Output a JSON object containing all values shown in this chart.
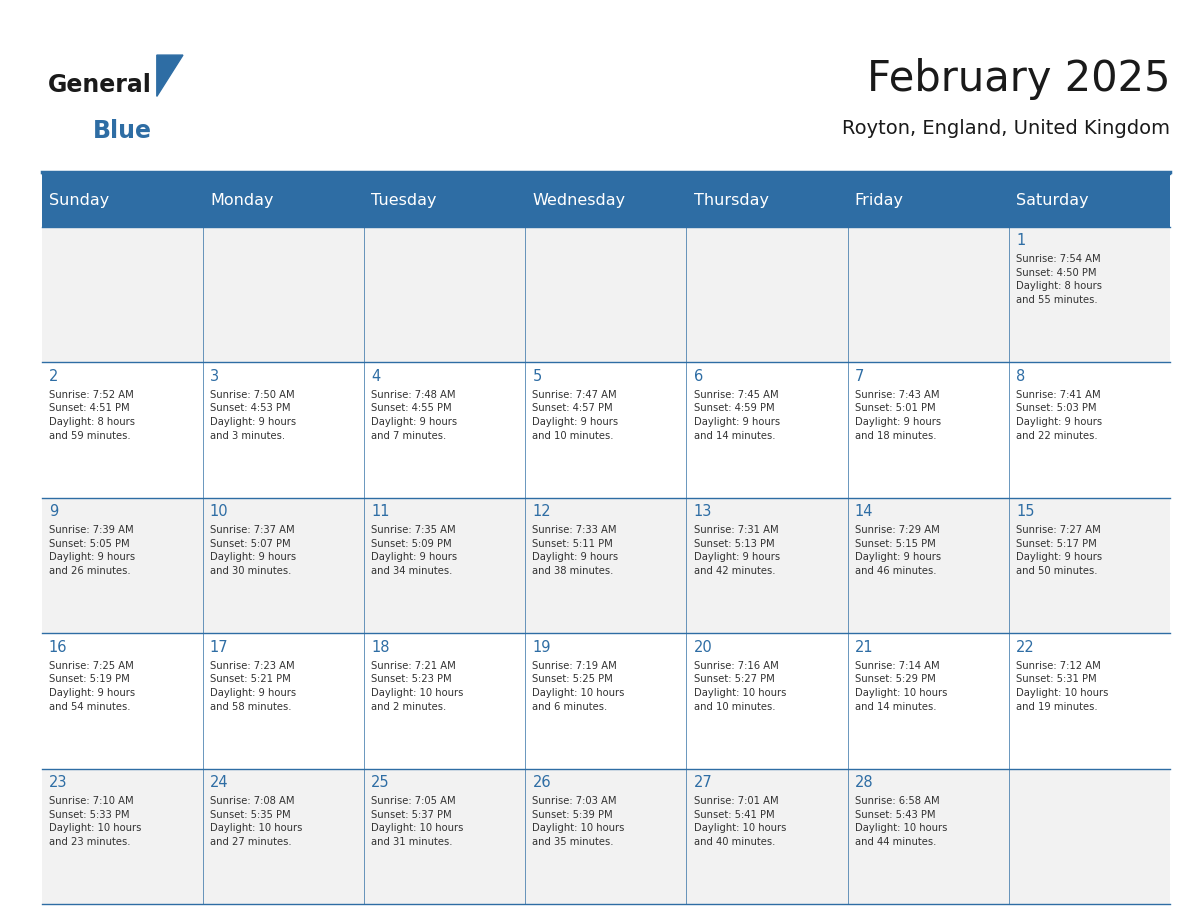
{
  "title": "February 2025",
  "subtitle": "Royton, England, United Kingdom",
  "header_bg": "#2E6DA4",
  "header_text_color": "#FFFFFF",
  "cell_bg_even": "#F2F2F2",
  "cell_bg_odd": "#FFFFFF",
  "day_number_color": "#2E6DA4",
  "info_text_color": "#333333",
  "border_color": "#2E6DA4",
  "days_of_week": [
    "Sunday",
    "Monday",
    "Tuesday",
    "Wednesday",
    "Thursday",
    "Friday",
    "Saturday"
  ],
  "weeks": [
    [
      {
        "day": null,
        "info": ""
      },
      {
        "day": null,
        "info": ""
      },
      {
        "day": null,
        "info": ""
      },
      {
        "day": null,
        "info": ""
      },
      {
        "day": null,
        "info": ""
      },
      {
        "day": null,
        "info": ""
      },
      {
        "day": 1,
        "info": "Sunrise: 7:54 AM\nSunset: 4:50 PM\nDaylight: 8 hours\nand 55 minutes."
      }
    ],
    [
      {
        "day": 2,
        "info": "Sunrise: 7:52 AM\nSunset: 4:51 PM\nDaylight: 8 hours\nand 59 minutes."
      },
      {
        "day": 3,
        "info": "Sunrise: 7:50 AM\nSunset: 4:53 PM\nDaylight: 9 hours\nand 3 minutes."
      },
      {
        "day": 4,
        "info": "Sunrise: 7:48 AM\nSunset: 4:55 PM\nDaylight: 9 hours\nand 7 minutes."
      },
      {
        "day": 5,
        "info": "Sunrise: 7:47 AM\nSunset: 4:57 PM\nDaylight: 9 hours\nand 10 minutes."
      },
      {
        "day": 6,
        "info": "Sunrise: 7:45 AM\nSunset: 4:59 PM\nDaylight: 9 hours\nand 14 minutes."
      },
      {
        "day": 7,
        "info": "Sunrise: 7:43 AM\nSunset: 5:01 PM\nDaylight: 9 hours\nand 18 minutes."
      },
      {
        "day": 8,
        "info": "Sunrise: 7:41 AM\nSunset: 5:03 PM\nDaylight: 9 hours\nand 22 minutes."
      }
    ],
    [
      {
        "day": 9,
        "info": "Sunrise: 7:39 AM\nSunset: 5:05 PM\nDaylight: 9 hours\nand 26 minutes."
      },
      {
        "day": 10,
        "info": "Sunrise: 7:37 AM\nSunset: 5:07 PM\nDaylight: 9 hours\nand 30 minutes."
      },
      {
        "day": 11,
        "info": "Sunrise: 7:35 AM\nSunset: 5:09 PM\nDaylight: 9 hours\nand 34 minutes."
      },
      {
        "day": 12,
        "info": "Sunrise: 7:33 AM\nSunset: 5:11 PM\nDaylight: 9 hours\nand 38 minutes."
      },
      {
        "day": 13,
        "info": "Sunrise: 7:31 AM\nSunset: 5:13 PM\nDaylight: 9 hours\nand 42 minutes."
      },
      {
        "day": 14,
        "info": "Sunrise: 7:29 AM\nSunset: 5:15 PM\nDaylight: 9 hours\nand 46 minutes."
      },
      {
        "day": 15,
        "info": "Sunrise: 7:27 AM\nSunset: 5:17 PM\nDaylight: 9 hours\nand 50 minutes."
      }
    ],
    [
      {
        "day": 16,
        "info": "Sunrise: 7:25 AM\nSunset: 5:19 PM\nDaylight: 9 hours\nand 54 minutes."
      },
      {
        "day": 17,
        "info": "Sunrise: 7:23 AM\nSunset: 5:21 PM\nDaylight: 9 hours\nand 58 minutes."
      },
      {
        "day": 18,
        "info": "Sunrise: 7:21 AM\nSunset: 5:23 PM\nDaylight: 10 hours\nand 2 minutes."
      },
      {
        "day": 19,
        "info": "Sunrise: 7:19 AM\nSunset: 5:25 PM\nDaylight: 10 hours\nand 6 minutes."
      },
      {
        "day": 20,
        "info": "Sunrise: 7:16 AM\nSunset: 5:27 PM\nDaylight: 10 hours\nand 10 minutes."
      },
      {
        "day": 21,
        "info": "Sunrise: 7:14 AM\nSunset: 5:29 PM\nDaylight: 10 hours\nand 14 minutes."
      },
      {
        "day": 22,
        "info": "Sunrise: 7:12 AM\nSunset: 5:31 PM\nDaylight: 10 hours\nand 19 minutes."
      }
    ],
    [
      {
        "day": 23,
        "info": "Sunrise: 7:10 AM\nSunset: 5:33 PM\nDaylight: 10 hours\nand 23 minutes."
      },
      {
        "day": 24,
        "info": "Sunrise: 7:08 AM\nSunset: 5:35 PM\nDaylight: 10 hours\nand 27 minutes."
      },
      {
        "day": 25,
        "info": "Sunrise: 7:05 AM\nSunset: 5:37 PM\nDaylight: 10 hours\nand 31 minutes."
      },
      {
        "day": 26,
        "info": "Sunrise: 7:03 AM\nSunset: 5:39 PM\nDaylight: 10 hours\nand 35 minutes."
      },
      {
        "day": 27,
        "info": "Sunrise: 7:01 AM\nSunset: 5:41 PM\nDaylight: 10 hours\nand 40 minutes."
      },
      {
        "day": 28,
        "info": "Sunrise: 6:58 AM\nSunset: 5:43 PM\nDaylight: 10 hours\nand 44 minutes."
      },
      {
        "day": null,
        "info": ""
      }
    ]
  ],
  "logo_text_general": "General",
  "logo_text_blue": "Blue",
  "logo_color_general": "#1a1a1a",
  "logo_color_blue": "#2E6DA4",
  "logo_triangle_color": "#2E6DA4"
}
